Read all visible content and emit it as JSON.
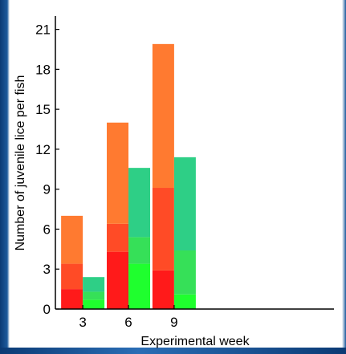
{
  "chart_data": {
    "type": "bar",
    "subtype": "stacked-grouped",
    "xlabel": "Experimental week",
    "ylabel": "Number of juvenile lice per fish",
    "ylim": [
      0,
      22
    ],
    "yticks": [
      0,
      3,
      6,
      9,
      12,
      15,
      18,
      21
    ],
    "xlim": [
      1.2,
      19.5
    ],
    "xticks": [
      3,
      6,
      9
    ],
    "grid": false,
    "groups": [
      {
        "week": 3,
        "bars": [
          {
            "palette": "red",
            "segments": [
              1.5,
              1.9,
              3.6
            ]
          },
          {
            "palette": "green",
            "segments": [
              0.7,
              0.6,
              1.1
            ]
          }
        ]
      },
      {
        "week": 6,
        "bars": [
          {
            "palette": "red",
            "segments": [
              4.3,
              2.1,
              7.6
            ]
          },
          {
            "palette": "green",
            "segments": [
              3.4,
              2.0,
              5.2
            ]
          }
        ]
      },
      {
        "week": 9,
        "bars": [
          {
            "palette": "red",
            "segments": [
              2.9,
              6.2,
              10.8
            ]
          },
          {
            "palette": "green",
            "segments": [
              1.1,
              3.3,
              7.0
            ]
          }
        ]
      }
    ],
    "colors": {
      "red": [
        "#ff1a1a",
        "#ff4b26",
        "#ff7a30"
      ],
      "green": [
        "#1fff2e",
        "#36e058",
        "#2ecf86"
      ]
    }
  }
}
